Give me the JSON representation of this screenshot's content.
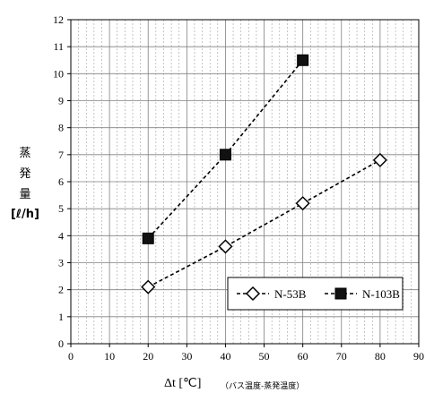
{
  "chart_data": {
    "type": "line",
    "xlabel": "Δt [℃]",
    "xlabel_note": "（バス温度-蒸発温度）",
    "ylabel_chars": [
      "蒸",
      "発",
      "量"
    ],
    "ylabel_unit": "[ℓ/h]",
    "xlim": [
      0,
      90
    ],
    "ylim": [
      0,
      12
    ],
    "x_ticks": [
      "0",
      "10",
      "20",
      "30",
      "40",
      "50",
      "60",
      "70",
      "80",
      "90"
    ],
    "y_ticks": [
      "0",
      "1",
      "2",
      "3",
      "4",
      "5",
      "6",
      "7",
      "8",
      "9",
      "10",
      "11",
      "12"
    ],
    "grid": true,
    "legend_position": "bottom-right",
    "series": [
      {
        "name": "N-53B",
        "marker": "open-diamond",
        "line": "dashed",
        "x": [
          20,
          40,
          60,
          80
        ],
        "y": [
          2.1,
          3.6,
          5.2,
          6.8
        ]
      },
      {
        "name": "N-103B",
        "marker": "filled-square",
        "line": "dashed",
        "x": [
          20,
          40,
          60
        ],
        "y": [
          3.9,
          7.0,
          10.5
        ]
      }
    ]
  },
  "colors": {
    "axis": "#000000",
    "grid": "#a0a0a0",
    "series": "#000000",
    "background": "#ffffff"
  }
}
